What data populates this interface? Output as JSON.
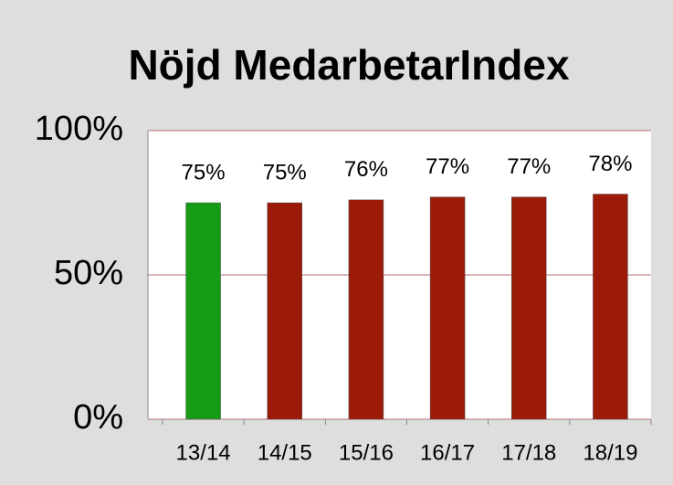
{
  "chart_data": {
    "type": "bar",
    "title": "Nöjd MedarbetarIndex",
    "categories": [
      "13/14",
      "14/15",
      "15/16",
      "16/17",
      "17/18",
      "18/19"
    ],
    "values": [
      75,
      75,
      76,
      77,
      77,
      78
    ],
    "value_labels": [
      "75%",
      "75%",
      "76%",
      "77%",
      "77%",
      "78%"
    ],
    "colors": [
      "#169b16",
      "#9b1a08",
      "#9b1a08",
      "#9b1a08",
      "#9b1a08",
      "#9b1a08"
    ],
    "ylim": [
      0,
      100
    ],
    "yticks": [
      {
        "value": 0,
        "label": "0%"
      },
      {
        "value": 50,
        "label": "50%"
      },
      {
        "value": 100,
        "label": "100%"
      }
    ],
    "grid": true
  }
}
